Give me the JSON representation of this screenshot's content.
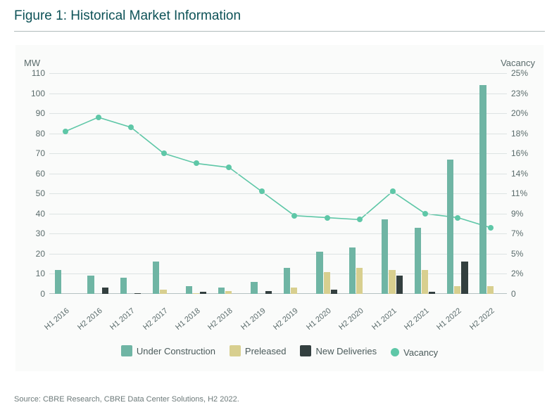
{
  "title": "Figure 1: Historical Market Information",
  "title_color": "#0d5257",
  "hr_color": "#b0bcbc",
  "chart_bg": "#fafbfa",
  "source": "Source: CBRE Research, CBRE Data Center Solutions, H2 2022.",
  "source_color": "#6d7a7a",
  "chart": {
    "y_left": {
      "title": "MW",
      "min": 0,
      "max": 110,
      "ticks": [
        0,
        10,
        20,
        30,
        40,
        50,
        60,
        70,
        80,
        90,
        100,
        110
      ]
    },
    "y_right": {
      "title": "Vacancy",
      "ticks": [
        {
          "v": 0,
          "label": "0"
        },
        {
          "v": 10,
          "label": "2%"
        },
        {
          "v": 20,
          "label": "5%"
        },
        {
          "v": 30,
          "label": "7%"
        },
        {
          "v": 40,
          "label": "9%"
        },
        {
          "v": 50,
          "label": "11%"
        },
        {
          "v": 60,
          "label": "14%"
        },
        {
          "v": 70,
          "label": "16%"
        },
        {
          "v": 80,
          "label": "18%"
        },
        {
          "v": 90,
          "label": "20%"
        },
        {
          "v": 100,
          "label": "23%"
        },
        {
          "v": 110,
          "label": "25%"
        }
      ]
    },
    "categories": [
      "H1 2016",
      "H2 2016",
      "H1 2017",
      "H2 2017",
      "H1 2018",
      "H2 2018",
      "H1 2019",
      "H2 2019",
      "H1 2020",
      "H2 2020",
      "H1 2021",
      "H2 2021",
      "H1 2022",
      "H2 2022"
    ],
    "series_bar": [
      {
        "key": "under_construction",
        "label": "Under Construction",
        "color": "#6fb5a4",
        "values": [
          12,
          9,
          8,
          16,
          4,
          3,
          6,
          13,
          21,
          23,
          37,
          33,
          67,
          104
        ]
      },
      {
        "key": "preleased",
        "label": "Preleased",
        "color": "#d8cf8f",
        "values": [
          0,
          0,
          0,
          2,
          0.5,
          1.5,
          0,
          3,
          11,
          13,
          12,
          12,
          4,
          4
        ]
      },
      {
        "key": "new_deliveries",
        "label": "New Deliveries",
        "color": "#333f3f",
        "values": [
          0,
          3,
          0.5,
          0,
          1,
          0,
          1.5,
          0,
          2,
          0,
          9,
          1,
          16,
          0
        ]
      }
    ],
    "series_line": {
      "key": "vacancy",
      "label": "Vacancy",
      "color": "#5ec7a7",
      "values_yleft": [
        81,
        88,
        83,
        70,
        65,
        63,
        51,
        39,
        38,
        37,
        51,
        40,
        38,
        33
      ]
    },
    "grid_color": "#dde3e3",
    "baseline_color": "#b5c2c2",
    "axis_text_color": "#5a6b6b",
    "bar_group_width_ratio": 0.66,
    "line_width": 1.6,
    "point_radius": 4
  },
  "legend": [
    {
      "type": "bar",
      "label": "Under Construction",
      "color": "#6fb5a4"
    },
    {
      "type": "bar",
      "label": "Preleased",
      "color": "#d8cf8f"
    },
    {
      "type": "bar",
      "label": "New Deliveries",
      "color": "#333f3f"
    },
    {
      "type": "dot",
      "label": "Vacancy",
      "color": "#5ec7a7"
    }
  ]
}
